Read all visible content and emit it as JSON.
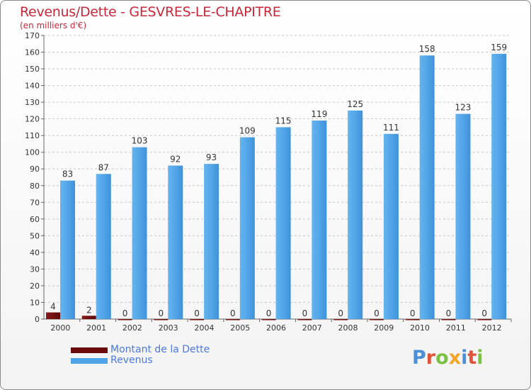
{
  "header": {
    "title": "Revenus/Dette - GESVRES-LE-CHAPITRE",
    "subtitle": "(en milliers d'€)"
  },
  "logo": {
    "text": "Proxiti",
    "letters": [
      "P",
      "r",
      "o",
      "x",
      "i",
      "t",
      "i"
    ],
    "colors": [
      "#4a8fd9",
      "#e0533a",
      "#7ac142",
      "#f2a623",
      "#4a8fd9",
      "#e0533a",
      "#7ac142"
    ]
  },
  "legend": {
    "items": [
      {
        "label": "Montant de la Dette",
        "color": "#6b0a0a"
      },
      {
        "label": "Revenus",
        "color": "#4ea3e6"
      }
    ]
  },
  "chart_data": {
    "type": "bar",
    "title": "Revenus/Dette - GESVRES-LE-CHAPITRE",
    "subtitle": "(en milliers d'€)",
    "categories": [
      "2000",
      "2001",
      "2002",
      "2003",
      "2004",
      "2005",
      "2006",
      "2007",
      "2008",
      "2009",
      "2010",
      "2011",
      "2012"
    ],
    "series": [
      {
        "name": "Montant de la Dette",
        "color": "#6b0a0a",
        "values": [
          4,
          2,
          0,
          0,
          0,
          0,
          0,
          0,
          0,
          0,
          0,
          0,
          0
        ]
      },
      {
        "name": "Revenus",
        "color": "#4ea3e6",
        "values": [
          83,
          87,
          103,
          92,
          93,
          109,
          115,
          119,
          125,
          111,
          158,
          123,
          159
        ]
      }
    ],
    "ylim": [
      0,
      170
    ],
    "ytick_step": 10,
    "grid": "horizontal-dashed",
    "legend_position": "bottom-left"
  }
}
